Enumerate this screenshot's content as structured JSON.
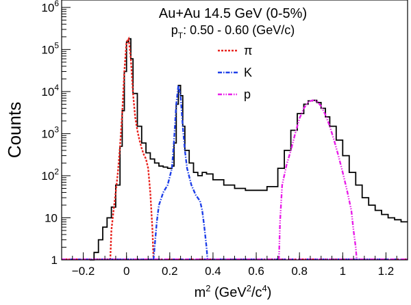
{
  "chart_data": {
    "type": "line",
    "title": "Au+Au 14.5 GeV (0-5%)",
    "subtitle": {
      "prefix": "p",
      "subscript": "T",
      "text": ": 0.50 - 0.60 (GeV/c)"
    },
    "xlabel": {
      "pre": "m",
      "sup1": "2",
      "mid": " (GeV",
      "sup2": "2",
      "mid2": "/c",
      "sup3": "4",
      "post": ")"
    },
    "ylabel": "Counts",
    "xlim": [
      -0.3,
      1.3
    ],
    "ylim": [
      1,
      1500000
    ],
    "yscale": "log",
    "grid": false,
    "legend_position": "top-center",
    "x_ticks": [
      {
        "value": -0.2,
        "label": "−0.2"
      },
      {
        "value": 0,
        "label": "0"
      },
      {
        "value": 0.2,
        "label": "0.2"
      },
      {
        "value": 0.4,
        "label": "0.4"
      },
      {
        "value": 0.6,
        "label": "0.6"
      },
      {
        "value": 0.8,
        "label": "0.8"
      },
      {
        "value": 1,
        "label": "1"
      },
      {
        "value": 1.2,
        "label": "1.2"
      }
    ],
    "y_ticks": [
      {
        "value": 1,
        "base": "1",
        "exp": ""
      },
      {
        "value": 10,
        "base": "10",
        "exp": ""
      },
      {
        "value": 100,
        "base": "10",
        "exp": "2"
      },
      {
        "value": 1000,
        "base": "10",
        "exp": "3"
      },
      {
        "value": 10000,
        "base": "10",
        "exp": "4"
      },
      {
        "value": 100000,
        "base": "10",
        "exp": "5"
      },
      {
        "value": 1000000,
        "base": "10",
        "exp": "6"
      }
    ],
    "data_histogram": {
      "color": "#000000",
      "x": [
        -0.17,
        -0.15,
        -0.13,
        -0.11,
        -0.09,
        -0.07,
        -0.05,
        -0.03,
        -0.02,
        -0.01,
        0.0,
        0.01,
        0.02,
        0.03,
        0.05,
        0.07,
        0.09,
        0.11,
        0.13,
        0.15,
        0.17,
        0.19,
        0.21,
        0.22,
        0.23,
        0.24,
        0.25,
        0.26,
        0.27,
        0.29,
        0.31,
        0.33,
        0.35,
        0.37,
        0.4,
        0.45,
        0.5,
        0.55,
        0.6,
        0.65,
        0.7,
        0.73,
        0.76,
        0.79,
        0.82,
        0.84,
        0.86,
        0.88,
        0.9,
        0.92,
        0.94,
        0.97,
        1.0,
        1.03,
        1.06,
        1.09,
        1.12,
        1.15,
        1.18,
        1.21,
        1.24,
        1.27,
        1.3
      ],
      "y": [
        1,
        1.5,
        3,
        6,
        10,
        18,
        60,
        500,
        3500,
        30000,
        150000,
        180000,
        60000,
        9000,
        1500,
        600,
        350,
        250,
        200,
        170,
        160,
        150,
        170,
        600,
        5000,
        14000,
        8000,
        1500,
        400,
        200,
        120,
        100,
        120,
        110,
        80,
        60,
        50,
        45,
        45,
        55,
        150,
        400,
        1200,
        3000,
        5000,
        6000,
        6200,
        5500,
        4000,
        2500,
        1500,
        700,
        300,
        120,
        60,
        30,
        20,
        15,
        12,
        10,
        9,
        8,
        8
      ]
    },
    "series": [
      {
        "name": "π",
        "color": "#e8231e",
        "dash": "3,2",
        "x": [
          -0.075,
          -0.07,
          -0.06,
          -0.05,
          -0.04,
          -0.03,
          -0.02,
          -0.01,
          0.0,
          0.01,
          0.02,
          0.03,
          0.04,
          0.05,
          0.06,
          0.07,
          0.08,
          0.09,
          0.1,
          0.11,
          0.12,
          0.125
        ],
        "y": [
          1,
          5,
          15,
          40,
          120,
          500,
          3000,
          30000,
          150000,
          180000,
          60000,
          9000,
          2500,
          1200,
          700,
          450,
          320,
          250,
          150,
          40,
          5,
          1
        ]
      },
      {
        "name": "K",
        "color": "#1e3fe8",
        "dash": "6,2,1.5,2",
        "x": [
          0.125,
          0.13,
          0.14,
          0.15,
          0.17,
          0.19,
          0.21,
          0.22,
          0.23,
          0.24,
          0.25,
          0.26,
          0.27,
          0.28,
          0.3,
          0.32,
          0.34,
          0.35,
          0.36,
          0.37,
          0.375
        ],
        "y": [
          1,
          2,
          8,
          20,
          40,
          60,
          150,
          700,
          5000,
          14000,
          8000,
          1500,
          400,
          150,
          60,
          35,
          25,
          15,
          6,
          2,
          1
        ]
      },
      {
        "name": "p",
        "color": "#e81ee8",
        "dash": "6,2,1.5,2,1.5,2",
        "x": [
          0.705,
          0.71,
          0.72,
          0.74,
          0.76,
          0.78,
          0.8,
          0.82,
          0.84,
          0.86,
          0.88,
          0.9,
          0.92,
          0.94,
          0.96,
          0.98,
          1.0,
          1.02,
          1.04,
          1.05,
          1.06,
          1.065
        ],
        "y": [
          1,
          8,
          60,
          180,
          400,
          1000,
          2300,
          4000,
          5600,
          6200,
          6000,
          4500,
          2800,
          1500,
          700,
          300,
          120,
          45,
          15,
          5,
          2,
          1
        ]
      }
    ],
    "legend": [
      {
        "label": "π",
        "color": "#e8231e",
        "dash": "3,2"
      },
      {
        "label": "K",
        "color": "#1e3fe8",
        "dash": "6,2,1.5,2"
      },
      {
        "label": "p",
        "color": "#e81ee8",
        "dash": "6,2,1.5,2,1.5,2"
      }
    ]
  }
}
